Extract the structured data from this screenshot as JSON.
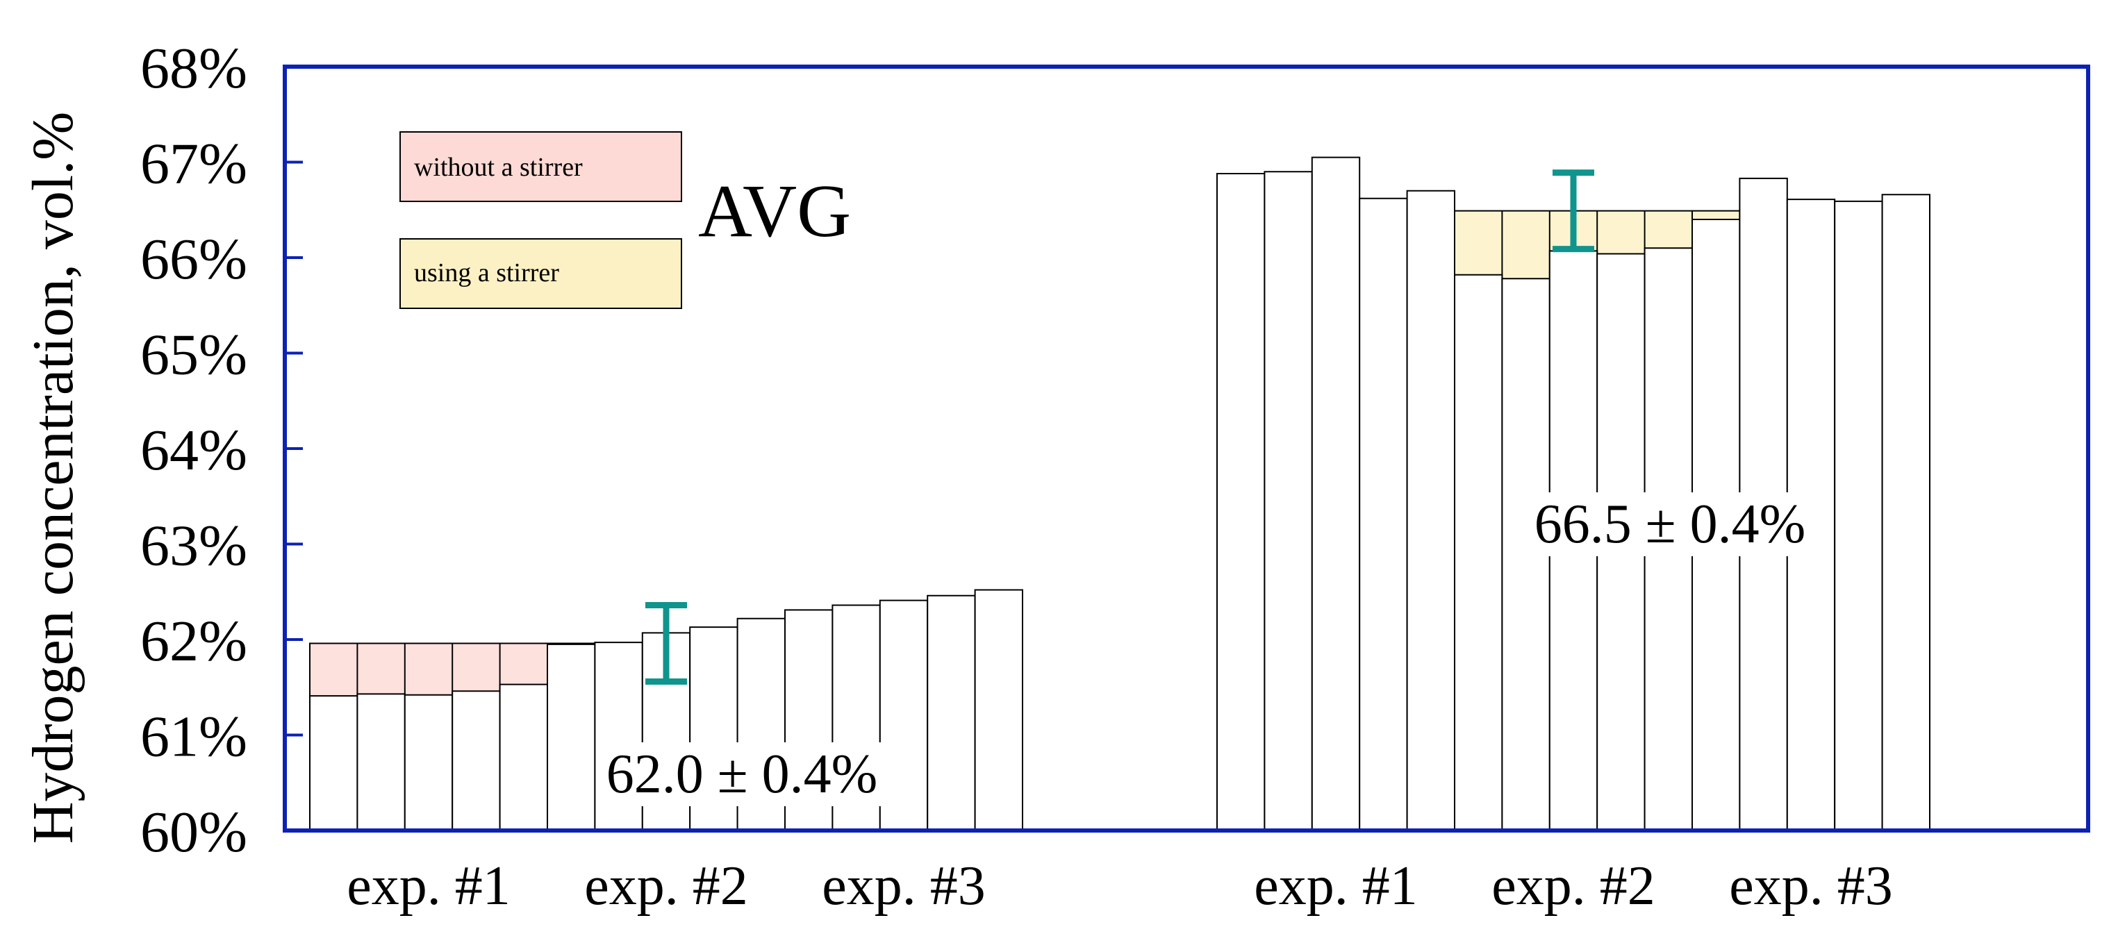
{
  "chart_data": {
    "type": "bar",
    "title": "AVG",
    "ylabel": "Hydrogen concentration, vol.%",
    "xlabel": "",
    "ylim": [
      60,
      68
    ],
    "yticks": [
      "60%",
      "61%",
      "62%",
      "63%",
      "64%",
      "65%",
      "66%",
      "67%",
      "68%"
    ],
    "grid": false,
    "legend_position": "top-left",
    "legend": [
      {
        "label": "without a stirrer",
        "color": "#fddad5"
      },
      {
        "label": "using a stirrer",
        "color": "#fcf1c4"
      }
    ],
    "groups": [
      {
        "name": "without a stirrer",
        "color": "#fddad5",
        "average": 61.96,
        "average_label": "62.0 ± 0.4%",
        "error_center": 61.96,
        "error_plus_minus": 0.4,
        "experiments": [
          {
            "label": "exp. #1",
            "values": [
              61.41,
              61.43,
              61.42,
              61.46,
              61.53
            ]
          },
          {
            "label": "exp. #2",
            "values": [
              61.95,
              61.97,
              62.07,
              62.13,
              62.22
            ]
          },
          {
            "label": "exp. #3",
            "values": [
              62.31,
              62.36,
              62.41,
              62.46,
              62.52
            ]
          }
        ]
      },
      {
        "name": "using a stirrer",
        "color": "#fcf1c4",
        "average": 66.49,
        "average_label": "66.5 ± 0.4%",
        "error_center": 66.49,
        "error_plus_minus": 0.4,
        "experiments": [
          {
            "label": "exp. #1",
            "values": [
              66.88,
              66.9,
              67.05,
              66.62,
              66.7
            ]
          },
          {
            "label": "exp. #2",
            "values": [
              65.82,
              65.78,
              66.07,
              66.04,
              66.1
            ]
          },
          {
            "label": "exp. #3",
            "values": [
              66.4,
              66.83,
              66.61,
              66.59,
              66.66
            ]
          }
        ]
      }
    ],
    "colors": {
      "frame": "#0c22b4",
      "error_bar": "#0f958d",
      "bar_outline": "#000000",
      "bar_fill": "#ffffff"
    }
  }
}
